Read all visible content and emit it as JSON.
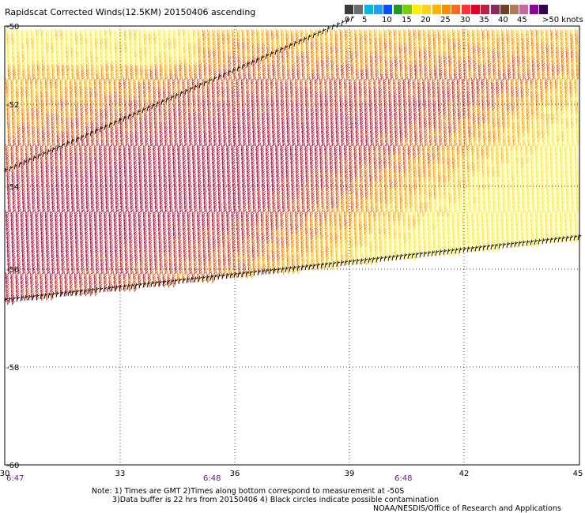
{
  "title": "Rapidscat Corrected Winds(12.5KM) 20150406 ascending",
  "wind_scale": {
    "labels": [
      "0",
      "5",
      "10",
      "15",
      "20",
      "25",
      "30",
      "35",
      "40",
      "45",
      ">50 knots"
    ],
    "colors": [
      "#3a3a3a",
      "#6e6e6e",
      "#00b8e6",
      "#1aa0ff",
      "#0050ff",
      "#1f9a1f",
      "#7acc00",
      "#ffee00",
      "#ffd11a",
      "#ffb300",
      "#ff8c00",
      "#ff6a1a",
      "#ff3333",
      "#e0002a",
      "#bf2040",
      "#8c2a5a",
      "#704020",
      "#b07a55",
      "#c86aa0",
      "#9000a0",
      "#3a0050"
    ]
  },
  "map": {
    "lat_labels": [
      "-50",
      "-52",
      "-54",
      "-56",
      "-58",
      "-60"
    ],
    "lon_labels": [
      "30",
      "33",
      "36",
      "39",
      "42",
      "45"
    ],
    "time_labels": [
      "6:47",
      "6:48",
      "6:48"
    ]
  },
  "notes": [
    "Note: 1) Times are GMT 2)Times along bottom correspond to measurement at -50S",
    "3)Data buffer is 22 hrs from 20150406 4) Black circles indicate possible contamination"
  ],
  "credit": "NOAA/NESDIS/Office of Research and Applications"
}
